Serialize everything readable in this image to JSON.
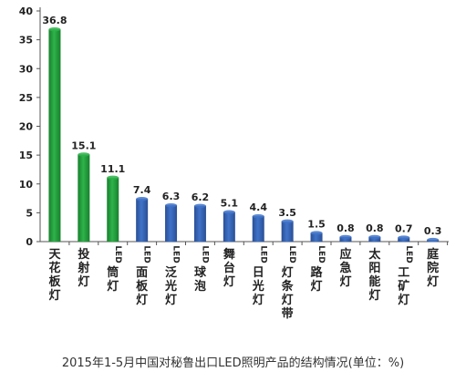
{
  "chart_data": {
    "type": "bar",
    "title": "2015年1-5月中国对秘鲁出口LED照明产品的结构情况(单位：%)",
    "xlabel": "",
    "ylabel": "",
    "ylim": [
      0,
      40
    ],
    "yticks": [
      0,
      5,
      10,
      15,
      20,
      25,
      30,
      35,
      40
    ],
    "grid": false,
    "categories": [
      "天花板灯",
      "投射灯",
      "LED筒灯",
      "LED面板灯",
      "LED泛光灯",
      "LED球泡",
      "舞台灯",
      "LED日光灯",
      "LED灯条灯带",
      "LED路灯",
      "应急灯",
      "太阳能灯",
      "LED工矿灯",
      "庭院灯"
    ],
    "values": [
      36.8,
      15.1,
      11.1,
      7.4,
      6.3,
      6.2,
      5.1,
      4.4,
      3.5,
      1.5,
      0.8,
      0.8,
      0.7,
      0.3
    ],
    "data_labels": [
      "36.8",
      "15.1",
      "11.1",
      "7.4",
      "6.3",
      "6.2",
      "5.1",
      "4.4",
      "3.5",
      "1.5",
      "0.8",
      "0.8",
      "0.7",
      "0.3"
    ],
    "bar_colors": [
      "#2eb34a",
      "#2eb34a",
      "#2eb34a",
      "#3f73c9",
      "#3f73c9",
      "#3f73c9",
      "#3f73c9",
      "#3f73c9",
      "#3f73c9",
      "#3f73c9",
      "#3f73c9",
      "#3f73c9",
      "#3f73c9",
      "#3f73c9"
    ]
  },
  "colors": {
    "green": "#2eb34a",
    "green_dark": "#17802d",
    "blue": "#3f73c9",
    "blue_dark": "#2a4f95",
    "axis": "#555555",
    "text": "#222222"
  }
}
